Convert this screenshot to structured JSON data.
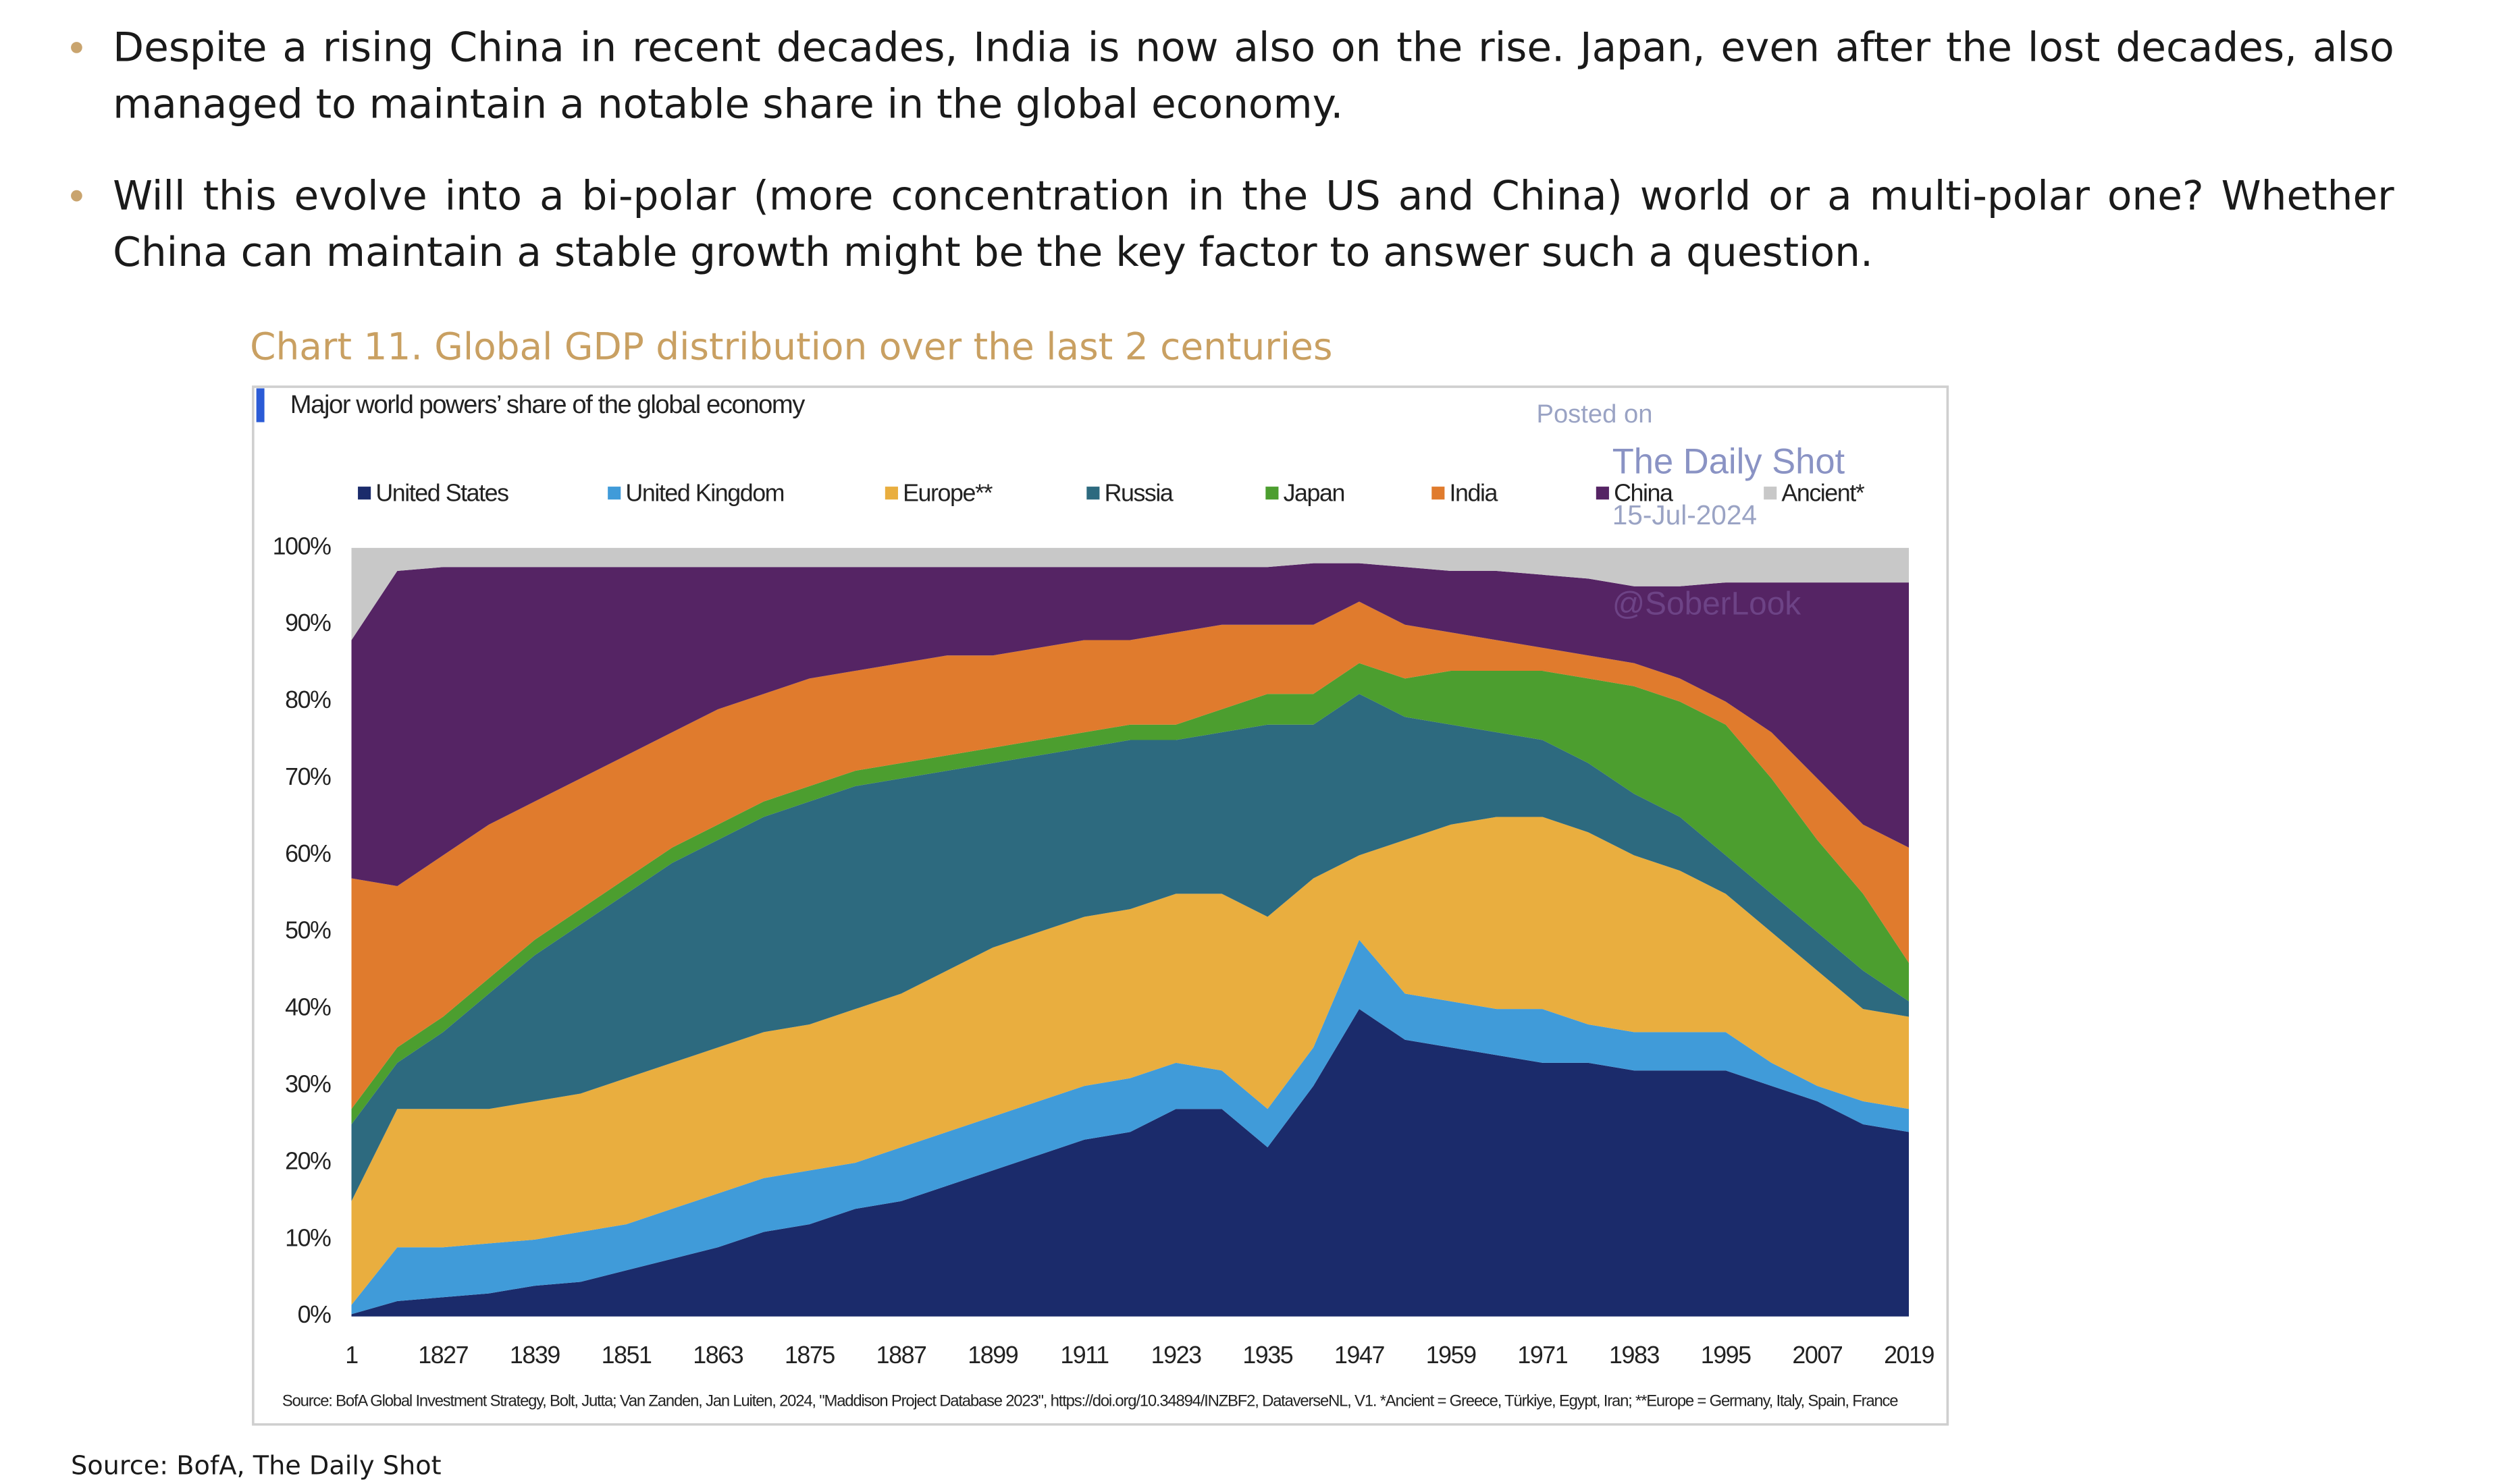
{
  "bullets": [
    "Despite a rising China in recent decades, India is now also on the rise. Japan, even after the lost decades, also managed to maintain a notable share in the global economy.",
    "Will this evolve into a bi-polar (more concentration in the US and China) world or a multi-polar one? Whether China can maintain a stable growth might be the key factor to answer such a question."
  ],
  "chart_caption": "Chart 11. Global GDP distribution over the last 2 centuries",
  "chart_data": {
    "type": "stacked-area",
    "title": "Major world powers’ share of the global economy",
    "watermark": [
      "Posted on",
      "The Daily Shot",
      "15-Jul-2024",
      "@SoberLook"
    ],
    "categories": [
      "1",
      null,
      "1827",
      null,
      "1839",
      null,
      "1851",
      null,
      "1863",
      null,
      "1875",
      null,
      "1887",
      null,
      "1899",
      null,
      "1911",
      null,
      "1923",
      null,
      "1935",
      null,
      "1947",
      null,
      "1959",
      null,
      "1971",
      null,
      "1983",
      null,
      "1995",
      null,
      "2007",
      null,
      "2019"
    ],
    "series": [
      {
        "name": "United States",
        "color": "#1b2b6b",
        "values": [
          0.3,
          2,
          2.5,
          3,
          4,
          4.5,
          6,
          7.5,
          9,
          11,
          12,
          14,
          15,
          17,
          19,
          21,
          23,
          24,
          27,
          27,
          22,
          30,
          40,
          36,
          35,
          34,
          33,
          33,
          32,
          32,
          32,
          30,
          28,
          25,
          24
        ]
      },
      {
        "name": "United Kingdom",
        "color": "#409bd9",
        "values": [
          1.2,
          7,
          6.5,
          6.5,
          6,
          6.5,
          6,
          6.5,
          7,
          7,
          7,
          6,
          7,
          7,
          7,
          7,
          7,
          7,
          6,
          5,
          5,
          5,
          9,
          6,
          6,
          6,
          7,
          5,
          5,
          5,
          5,
          3,
          2,
          3,
          3
        ]
      },
      {
        "name": "Europe**",
        "color": "#e9ae3f",
        "values": [
          13.5,
          18,
          18,
          17.5,
          18,
          18,
          19,
          19,
          19,
          19,
          19,
          20,
          20,
          21,
          22,
          22,
          22,
          22,
          22,
          23,
          25,
          22,
          11,
          20,
          23,
          25,
          25,
          25,
          23,
          21,
          18,
          17,
          15,
          12,
          12
        ]
      },
      {
        "name": "Russia",
        "color": "#2d6a7f",
        "values": [
          10,
          6,
          10,
          15,
          19,
          22,
          24,
          26,
          27,
          28,
          29,
          29,
          28,
          26,
          24,
          23,
          22,
          22,
          20,
          21,
          25,
          20,
          21,
          16,
          13,
          11,
          10,
          9,
          8,
          7,
          5,
          5,
          5,
          5,
          2
        ]
      },
      {
        "name": "Japan",
        "color": "#4c9e2f",
        "values": [
          2,
          2,
          2,
          2,
          2,
          2,
          2,
          2,
          2,
          2,
          2,
          2,
          2,
          2,
          2,
          2,
          2,
          2,
          2,
          3,
          4,
          4,
          4,
          5,
          7,
          8,
          9,
          11,
          14,
          15,
          17,
          15,
          12,
          10,
          5
        ]
      },
      {
        "name": "India",
        "color": "#e07b2d",
        "values": [
          30,
          21,
          21,
          20,
          18,
          17,
          16,
          15,
          15,
          14,
          14,
          13,
          13,
          13,
          12,
          12,
          12,
          11,
          12,
          11,
          9,
          9,
          8,
          7,
          5,
          4,
          3,
          3,
          3,
          3,
          3,
          6,
          8,
          9,
          15
        ]
      },
      {
        "name": "China",
        "color": "#552464",
        "values": [
          31,
          41,
          37.5,
          33.5,
          30.5,
          27.5,
          24.5,
          21.5,
          18.5,
          16.5,
          14.5,
          13.5,
          12.5,
          11.5,
          11.5,
          10.5,
          9.5,
          9.5,
          8.5,
          7.5,
          7.5,
          8,
          5,
          7.5,
          8,
          9,
          9.5,
          10,
          10,
          12,
          15.5,
          19.5,
          25.5,
          31.5,
          34.5
        ]
      },
      {
        "name": "Ancient*",
        "color": "#c8c8c8",
        "values": [
          12,
          3,
          2.5,
          2.5,
          2.5,
          2.5,
          2.5,
          2.5,
          2.5,
          2.5,
          2.5,
          2.5,
          2.5,
          2.5,
          2.5,
          2.5,
          2.5,
          2.5,
          2.5,
          2.5,
          2.5,
          2,
          2,
          2.5,
          3,
          3,
          3.5,
          4,
          5,
          5,
          4.5,
          4.5,
          4.5,
          4.5,
          4.5
        ]
      }
    ],
    "ylim": [
      0,
      100
    ],
    "yticks": [
      {
        "value": 0,
        "label": "0%"
      },
      {
        "value": 10,
        "label": "10%"
      },
      {
        "value": 20,
        "label": "20%"
      },
      {
        "value": 30,
        "label": "30%"
      },
      {
        "value": 40,
        "label": "40%"
      },
      {
        "value": 50,
        "label": "50%"
      },
      {
        "value": 60,
        "label": "60%"
      },
      {
        "value": 70,
        "label": "70%"
      },
      {
        "value": 80,
        "label": "80%"
      },
      {
        "value": 90,
        "label": "90%"
      },
      {
        "value": 100,
        "label": "100%"
      }
    ],
    "note": "Source: BofA Global Investment Strategy, Bolt, Jutta; Van Zanden, Jan Luiten, 2024, \"Maddison Project Database 2023\", https://doi.org/10.34894/INZBF2, DataverseNL, V1. *Ancient = Greece, Türkiye, Egypt, Iran; **Europe = Germany, Italy, Spain, France"
  },
  "source": "Source: BofA, The Daily Shot"
}
